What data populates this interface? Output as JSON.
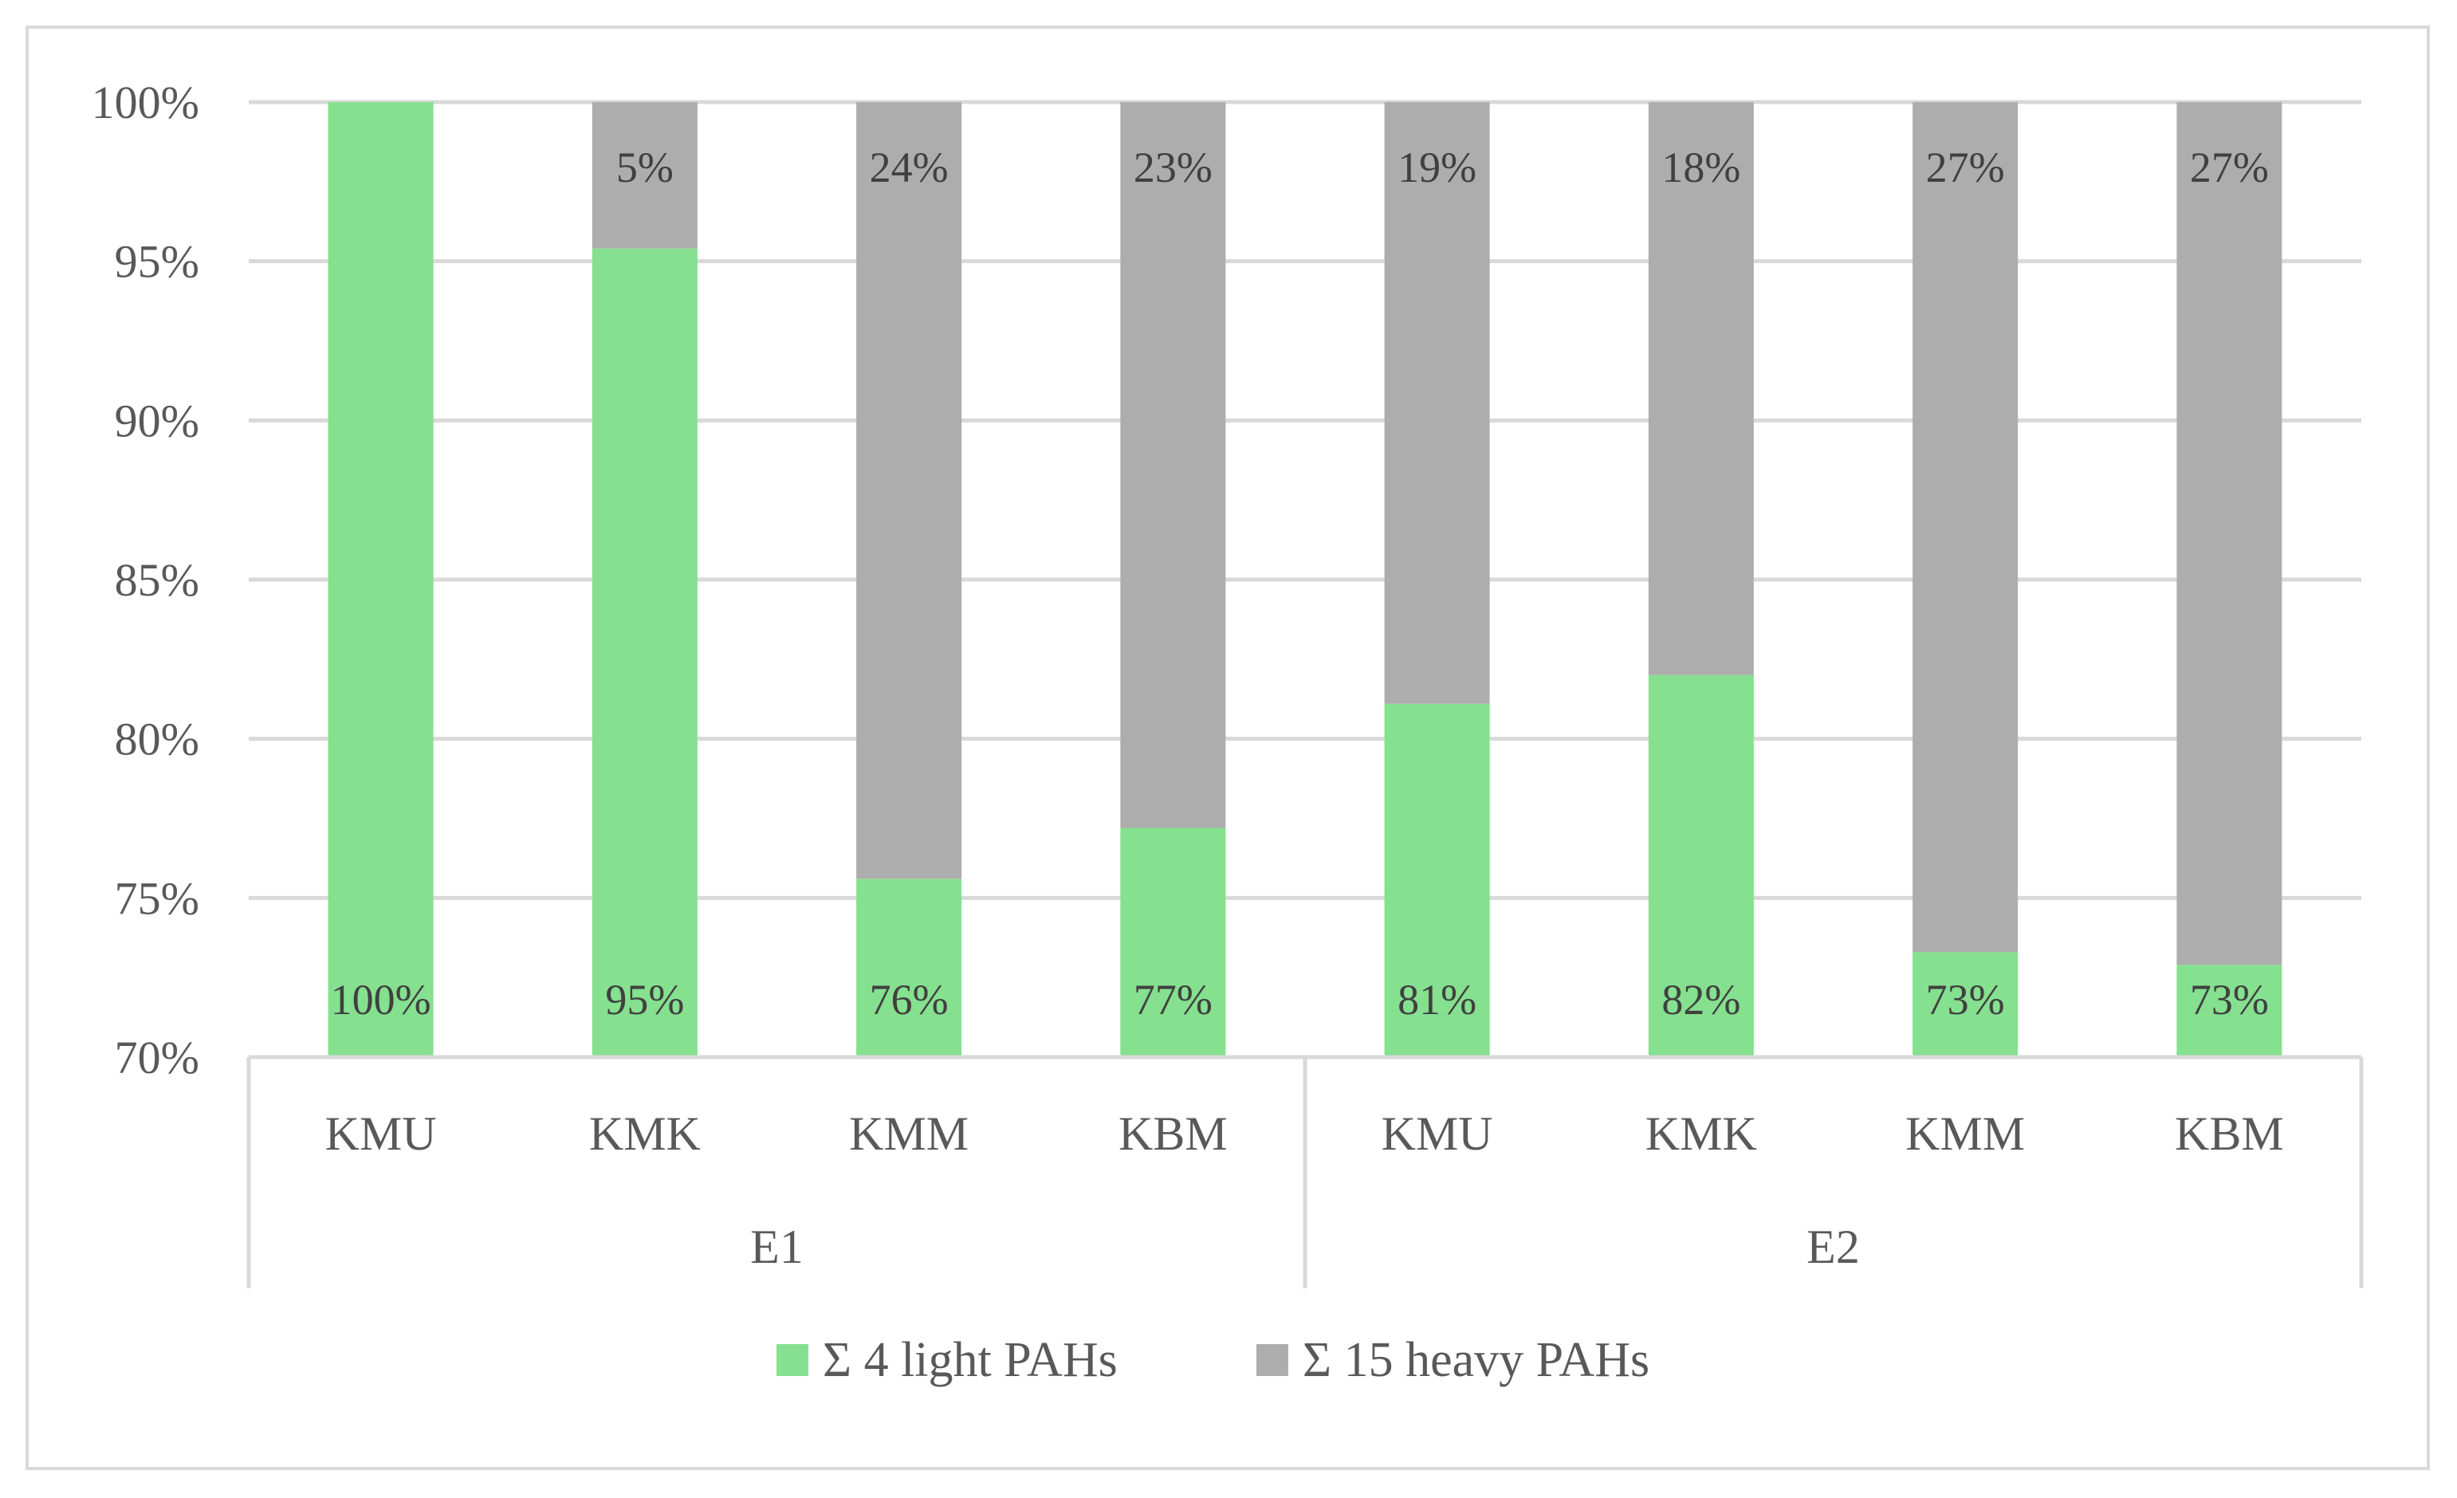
{
  "chart_data": {
    "type": "bar",
    "stacked": true,
    "normalized": true,
    "groups": [
      {
        "label": "E1",
        "categories": [
          "KMU",
          "KMK",
          "KMM",
          "KBM"
        ]
      },
      {
        "label": "E2",
        "categories": [
          "KMU",
          "KMK",
          "KMM",
          "KBM"
        ]
      }
    ],
    "categories": [
      "KMU",
      "KMK",
      "KMM",
      "KBM",
      "KMU",
      "KMK",
      "KMM",
      "KBM"
    ],
    "series": [
      {
        "name": "Σ 4 light PAHs",
        "color": "#85e08f",
        "values": [
          100,
          95.4,
          75.6,
          77.2,
          81.1,
          82.0,
          73.3,
          72.9
        ],
        "labels": [
          "100%",
          "95%",
          "76%",
          "77%",
          "81%",
          "82%",
          "73%",
          "73%"
        ]
      },
      {
        "name": "Σ 15 heavy PAHs",
        "color": "#adadad",
        "values": [
          0,
          4.6,
          24.4,
          22.8,
          18.9,
          18.0,
          26.7,
          27.1
        ],
        "labels": [
          "",
          "5%",
          "24%",
          "23%",
          "19%",
          "18%",
          "27%",
          "27%"
        ]
      }
    ],
    "ylim": [
      70,
      100
    ],
    "yticks": [
      70,
      75,
      80,
      85,
      90,
      95,
      100
    ],
    "ytick_labels": [
      "70%",
      "75%",
      "80%",
      "85%",
      "90%",
      "95%",
      "100%"
    ],
    "grid": true,
    "legend_position": "bottom",
    "title": "",
    "xlabel": "",
    "ylabel": "",
    "gridline_color": "#d9d9d9"
  }
}
